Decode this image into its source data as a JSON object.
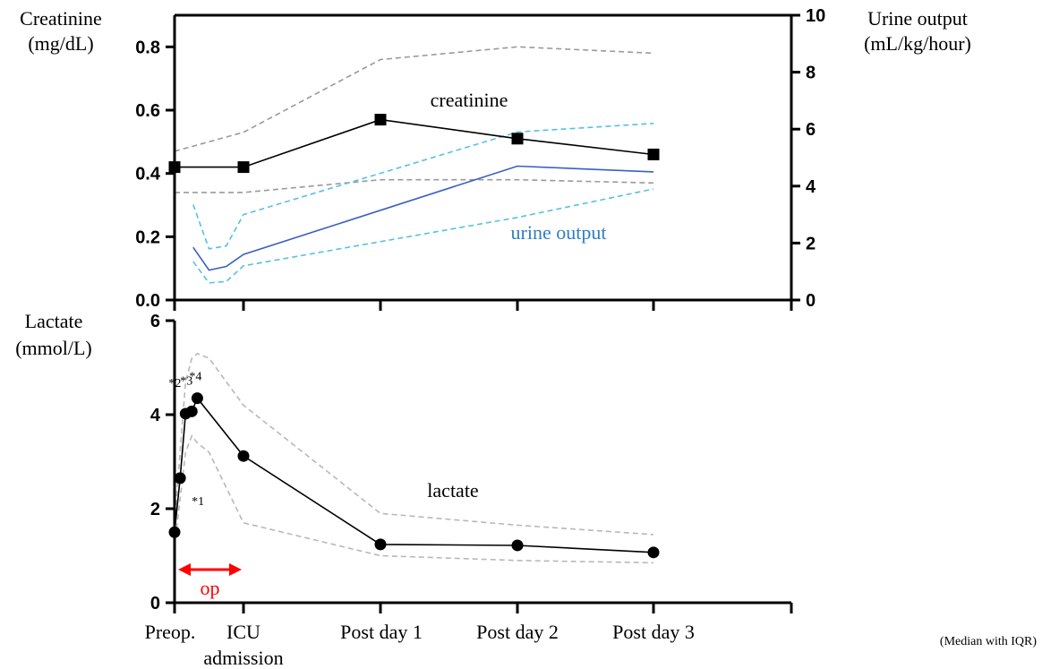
{
  "chart_data": [
    {
      "type": "line",
      "panel": "top",
      "categories": [
        "Preop.",
        "ICU admission",
        "Post day 1",
        "Post day 2",
        "Post day 3"
      ],
      "left_axis": {
        "label_line1": "Creatinine",
        "label_line2": "(mg/dL)",
        "ylim": [
          0,
          0.9
        ],
        "ticks": [
          "0.0",
          "0.2",
          "0.4",
          "0.6",
          "0.8"
        ]
      },
      "right_axis": {
        "label_line1": "Urine output",
        "label_line2": "(mL/kg/hour)",
        "ylim": [
          0,
          10
        ],
        "ticks": [
          "0",
          "2",
          "4",
          "6",
          "8",
          "10"
        ]
      },
      "series": [
        {
          "name": "creatinine",
          "axis": "left",
          "color": "#000000",
          "marker": "square",
          "x": [
            0,
            1,
            2,
            3,
            4
          ],
          "median": [
            0.42,
            0.42,
            0.57,
            0.51,
            0.46
          ],
          "q1": [
            0.34,
            0.34,
            0.38,
            0.38,
            0.37
          ],
          "q3": [
            0.47,
            0.53,
            0.76,
            0.8,
            0.78
          ],
          "iqr_x": [
            0,
            1,
            2,
            3,
            4
          ],
          "iqr_q1_path": [
            0.34,
            0.34,
            0.38,
            0.38,
            0.37
          ],
          "iqr_q3_path": [
            0.47,
            0.53,
            0.76,
            0.8,
            0.78
          ],
          "label_color": "#000000"
        },
        {
          "name": "urine output",
          "axis": "right",
          "color": "#3a5fc4",
          "iqr_color": "#55c2e0",
          "marker": "none",
          "x": [
            0.27,
            0.5,
            0.75,
            1.0,
            2.0,
            3.0,
            4.0
          ],
          "median": [
            1.85,
            1.05,
            1.1,
            null,
            1.55,
            4.7,
            4.5
          ],
          "x_median": [
            0.27,
            0.5,
            0.75,
            1.0,
            3.0,
            4.0
          ],
          "median_path": [
            1.85,
            1.05,
            1.18,
            1.6,
            4.7,
            4.5
          ],
          "x_q3": [
            0.27,
            0.5,
            0.75,
            1.0,
            3.0,
            4.0
          ],
          "q3_path": [
            3.35,
            1.8,
            1.9,
            3.0,
            5.9,
            6.2
          ],
          "x_q1": [
            0.27,
            0.5,
            0.75,
            1.0,
            3.0,
            4.0
          ],
          "q1_path": [
            1.35,
            0.6,
            0.65,
            1.2,
            2.9,
            3.9
          ],
          "label_color": "#2f7fc0"
        }
      ]
    },
    {
      "type": "line",
      "panel": "bottom",
      "categories": [
        "Preop.",
        "ICU admission",
        "Post day 1",
        "Post day 2",
        "Post day 3"
      ],
      "left_axis": {
        "label_line1": "Lactate",
        "label_line2": "(mmol/L)",
        "ylim": [
          0,
          6
        ],
        "ticks": [
          "0",
          "2",
          "4",
          "6"
        ]
      },
      "series": [
        {
          "name": "lactate",
          "color": "#000000",
          "marker": "circle",
          "x": [
            0,
            0.08,
            0.16,
            0.25,
            0.33,
            0.5,
            1.5,
            2.5,
            3.5
          ],
          "x_plot": [
            0,
            0.08,
            0.16,
            0.25,
            0.33,
            1.0,
            2.0,
            3.0,
            4.0
          ],
          "median": [
            1.5,
            2.65,
            4.02,
            4.07,
            4.35,
            3.12,
            1.24,
            1.22,
            1.07
          ],
          "iqr_x": [
            0,
            0.16,
            0.25,
            0.33,
            0.5,
            1.0,
            2.0,
            3.0,
            4.0
          ],
          "q3_path": [
            1.7,
            4.7,
            5.2,
            5.3,
            5.2,
            4.2,
            1.9,
            1.65,
            1.45
          ],
          "q1_path": [
            1.2,
            3.2,
            3.55,
            3.4,
            3.2,
            1.7,
            1.0,
            0.9,
            0.85
          ],
          "label_color": "#000000"
        }
      ],
      "annotations": [
        "*1",
        "*2",
        "*3",
        "*4"
      ],
      "op_label": "op",
      "op_color": "#ff0000"
    }
  ],
  "labels": {
    "creatinine_series": "creatinine",
    "urine_series": "urine output",
    "lactate_series": "lactate",
    "cat_0": "Preop.",
    "cat_1_line1": "ICU",
    "cat_1_line2": "admission",
    "cat_2": "Post day 1",
    "cat_3": "Post day 2",
    "cat_4": "Post day 3",
    "footnote": "(Median with IQR)"
  }
}
